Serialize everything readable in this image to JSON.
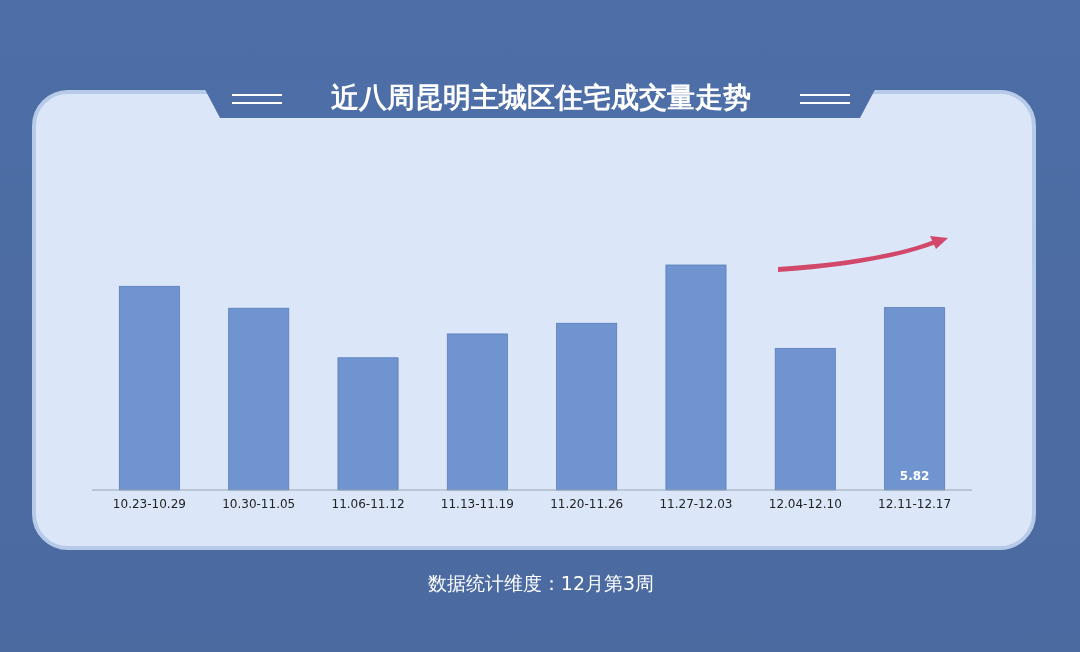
{
  "chart_data": {
    "type": "bar",
    "title": "近八周昆明主城区住宅成交量走势",
    "categories": [
      "10.23-10.29",
      "10.30-11.05",
      "11.06-11.12",
      "11.13-11.19",
      "11.20-11.26",
      "11.27-12.03",
      "12.04-12.10",
      "12.11-12.17"
    ],
    "values": [
      6.5,
      5.8,
      4.22,
      4.98,
      5.32,
      7.18,
      4.52,
      5.82
    ],
    "value_labels": [
      null,
      null,
      null,
      null,
      null,
      null,
      null,
      "5.82"
    ],
    "color": "#6f94cf",
    "annotations": [
      "数据统计维度：12月第3周"
    ]
  }
}
